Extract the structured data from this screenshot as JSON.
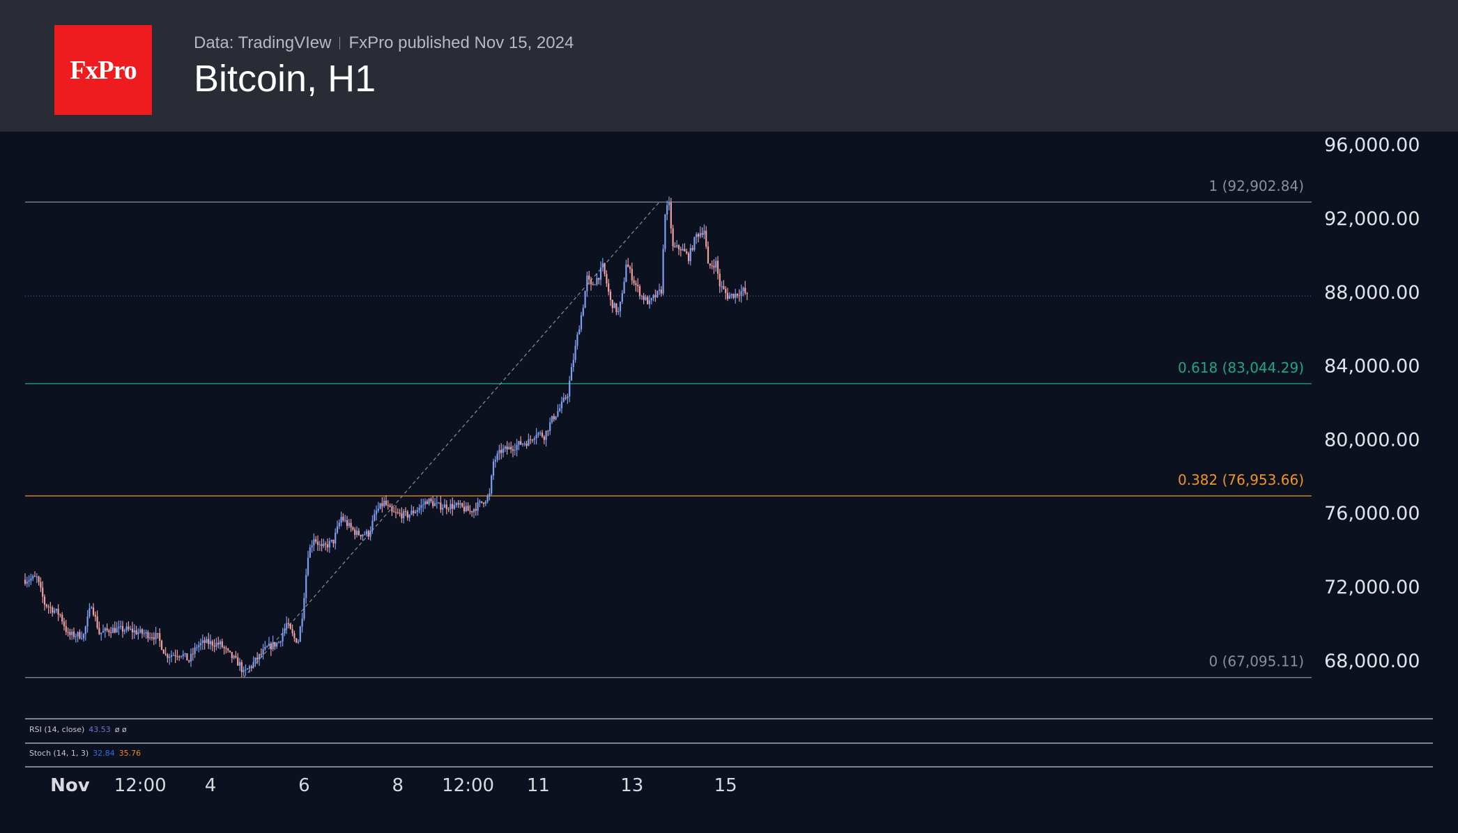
{
  "header": {
    "logo_text": "FxPro",
    "data_source": "Data: TradingVIew",
    "published": "FxPro published Nov 15, 2024",
    "title": "Bitcoin, H1"
  },
  "indicators": {
    "rsi_label": "RSI (14, close)",
    "rsi_value": "43.53",
    "rsi_extra": "ø ø",
    "stoch_label": "Stoch (14, 1, 3)",
    "stoch_k": "32.84",
    "stoch_d": "35.76"
  },
  "colors": {
    "background": "#0c1120",
    "header_bg": "#2a2c35",
    "logo_red": "#ee1c1f",
    "up_candle": "#7e9ff0",
    "down_candle": "#f0a0a0",
    "fib_1": "#8a8f9e",
    "fib_0618": "#1fa58c",
    "fib_0382": "#f0941e",
    "fib_0": "#8a8f9e"
  },
  "chart_data": {
    "type": "candlestick",
    "title": "Bitcoin, H1",
    "timeframe": "H1",
    "ylim": [
      66000,
      96500
    ],
    "y_ticks": [
      {
        "value": 96000,
        "label": "96,000.00"
      },
      {
        "value": 92000,
        "label": "92,000.00"
      },
      {
        "value": 88000,
        "label": "88,000.00"
      },
      {
        "value": 84000,
        "label": "84,000.00"
      },
      {
        "value": 80000,
        "label": "80,000.00"
      },
      {
        "value": 76000,
        "label": "76,000.00"
      },
      {
        "value": 72000,
        "label": "72,000.00"
      },
      {
        "value": 68000,
        "label": "68,000.00"
      }
    ],
    "x_ticks": [
      {
        "label": "Nov",
        "bold": true,
        "index": 23
      },
      {
        "label": "12:00",
        "bold": false,
        "index": 59
      },
      {
        "label": "4",
        "bold": false,
        "index": 95
      },
      {
        "label": "6",
        "bold": false,
        "index": 143
      },
      {
        "label": "8",
        "bold": false,
        "index": 191
      },
      {
        "label": "12:00",
        "bold": false,
        "index": 227
      },
      {
        "label": "11",
        "bold": false,
        "index": 263
      },
      {
        "label": "13",
        "bold": false,
        "index": 311
      },
      {
        "label": "15",
        "bold": false,
        "index": 359
      }
    ],
    "fibonacci": [
      {
        "level": "1",
        "price": 92902.84,
        "label": "1 (92,902.84)",
        "color": "#8a8f9e"
      },
      {
        "level": "0.618",
        "price": 83044.29,
        "label": "0.618 (83,044.29)",
        "color": "#1fa58c"
      },
      {
        "level": "0.382",
        "price": 76953.66,
        "label": "0.382 (76,953.66)",
        "color": "#f0941e"
      },
      {
        "level": "0",
        "price": 67095.11,
        "label": "0 (67,095.11)",
        "color": "#8a8f9e"
      }
    ],
    "current_price": 87800,
    "fib_trend": {
      "from_index": 112,
      "from_price": 67095.11,
      "to_index": 325,
      "to_price": 92902.84
    },
    "price_path": [
      [
        0,
        72400
      ],
      [
        6,
        72500
      ],
      [
        10,
        71100
      ],
      [
        18,
        70500
      ],
      [
        22,
        69400
      ],
      [
        30,
        69400
      ],
      [
        34,
        71100
      ],
      [
        38,
        69500
      ],
      [
        44,
        69700
      ],
      [
        52,
        69700
      ],
      [
        60,
        69500
      ],
      [
        68,
        69300
      ],
      [
        72,
        68300
      ],
      [
        80,
        68400
      ],
      [
        84,
        68000
      ],
      [
        88,
        68800
      ],
      [
        92,
        69000
      ],
      [
        100,
        68900
      ],
      [
        104,
        68400
      ],
      [
        110,
        67800
      ],
      [
        112,
        67300
      ],
      [
        118,
        68000
      ],
      [
        124,
        68700
      ],
      [
        130,
        69000
      ],
      [
        134,
        70000
      ],
      [
        138,
        69200
      ],
      [
        140,
        69100
      ],
      [
        142,
        70500
      ],
      [
        145,
        73800
      ],
      [
        148,
        74700
      ],
      [
        152,
        74100
      ],
      [
        158,
        74500
      ],
      [
        162,
        75800
      ],
      [
        166,
        75300
      ],
      [
        170,
        74900
      ],
      [
        176,
        74900
      ],
      [
        180,
        76100
      ],
      [
        184,
        76600
      ],
      [
        188,
        76000
      ],
      [
        196,
        75900
      ],
      [
        202,
        76300
      ],
      [
        206,
        76700
      ],
      [
        212,
        76400
      ],
      [
        222,
        76400
      ],
      [
        228,
        76100
      ],
      [
        234,
        76600
      ],
      [
        238,
        77000
      ],
      [
        240,
        78800
      ],
      [
        244,
        79400
      ],
      [
        250,
        79600
      ],
      [
        254,
        79800
      ],
      [
        258,
        79900
      ],
      [
        262,
        80400
      ],
      [
        266,
        80200
      ],
      [
        270,
        81100
      ],
      [
        274,
        81700
      ],
      [
        278,
        82500
      ],
      [
        280,
        83800
      ],
      [
        284,
        86200
      ],
      [
        286,
        87300
      ],
      [
        288,
        88800
      ],
      [
        290,
        88300
      ],
      [
        294,
        88900
      ],
      [
        296,
        89400
      ],
      [
        298,
        88500
      ],
      [
        300,
        87500
      ],
      [
        304,
        86900
      ],
      [
        306,
        87800
      ],
      [
        308,
        89600
      ],
      [
        312,
        88600
      ],
      [
        316,
        87800
      ],
      [
        320,
        87400
      ],
      [
        322,
        87700
      ],
      [
        326,
        88100
      ],
      [
        328,
        92400
      ],
      [
        330,
        92700
      ],
      [
        332,
        90400
      ],
      [
        336,
        90400
      ],
      [
        340,
        89900
      ],
      [
        344,
        91100
      ],
      [
        348,
        91400
      ],
      [
        350,
        89400
      ],
      [
        354,
        89600
      ],
      [
        356,
        88400
      ],
      [
        360,
        87800
      ],
      [
        364,
        87900
      ],
      [
        368,
        88100
      ],
      [
        370,
        87800
      ]
    ]
  }
}
